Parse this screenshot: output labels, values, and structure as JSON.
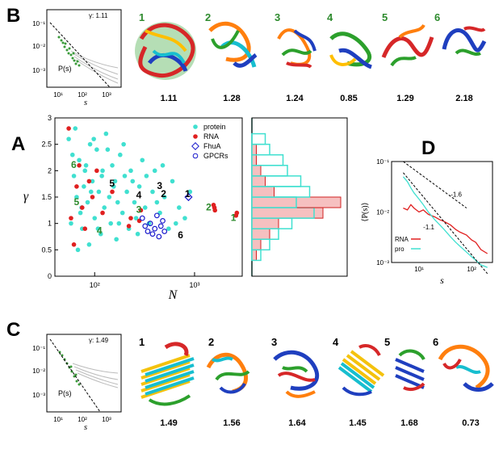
{
  "panels": {
    "A": "A",
    "B": "B",
    "C": "C",
    "D": "D"
  },
  "panel_b": {
    "legend_gamma": "γ: 1.11",
    "legend_ps": "P(s)",
    "xlabel": "s",
    "yticks": [
      "10⁻¹",
      "10⁻²",
      "10⁻³"
    ],
    "xticks": [
      "10¹",
      "10²",
      "10³"
    ],
    "structures": [
      {
        "idx": "1",
        "gamma": "1.11"
      },
      {
        "idx": "2",
        "gamma": "1.28"
      },
      {
        "idx": "3",
        "gamma": "1.24"
      },
      {
        "idx": "4",
        "gamma": "0.85"
      },
      {
        "idx": "5",
        "gamma": "1.29"
      },
      {
        "idx": "6",
        "gamma": "2.18"
      }
    ],
    "idx_color": "#2e8b2e"
  },
  "panel_c": {
    "legend_gamma": "γ: 1.49",
    "legend_ps": "P(s)",
    "xlabel": "s",
    "yticks": [
      "10⁻¹",
      "10⁻²",
      "10⁻³"
    ],
    "xticks": [
      "10¹",
      "10²",
      "10³"
    ],
    "structures": [
      {
        "idx": "1",
        "gamma": "1.49"
      },
      {
        "idx": "2",
        "gamma": "1.56"
      },
      {
        "idx": "3",
        "gamma": "1.64"
      },
      {
        "idx": "4",
        "gamma": "1.45"
      },
      {
        "idx": "5",
        "gamma": "1.68"
      },
      {
        "idx": "6",
        "gamma": "0.73"
      }
    ],
    "idx_color": "#000000"
  },
  "chart_data": [
    {
      "id": "A",
      "type": "scatter",
      "title": "",
      "xlabel": "N",
      "ylabel": "γ",
      "xscale": "log",
      "xlim": [
        40,
        3000
      ],
      "ylim": [
        0,
        3
      ],
      "yticks": [
        "0",
        "0.5",
        "1",
        "1.5",
        "2",
        "2.5",
        "3"
      ],
      "xticks": [
        "10²",
        "10³"
      ],
      "legend": [
        {
          "label": "protein",
          "color": "#40e0d0",
          "marker": "filled-circle"
        },
        {
          "label": "RNA",
          "color": "#e02020",
          "marker": "filled-circle"
        },
        {
          "label": "FhuA",
          "color": "#1a1acc",
          "marker": "open-diamond"
        },
        {
          "label": "GPCRs",
          "color": "#1a1acc",
          "marker": "open-circle"
        }
      ],
      "series": [
        {
          "name": "protein",
          "points": [
            [
              55,
              2.6
            ],
            [
              60,
              2.3
            ],
            [
              62,
              1.9
            ],
            [
              66,
              1.5
            ],
            [
              70,
              2.2
            ],
            [
              72,
              1.2
            ],
            [
              75,
              0.9
            ],
            [
              78,
              1.7
            ],
            [
              80,
              2.0
            ],
            [
              85,
              1.4
            ],
            [
              88,
              0.6
            ],
            [
              90,
              2.5
            ],
            [
              95,
              1.8
            ],
            [
              100,
              1.1
            ],
            [
              105,
              2.4
            ],
            [
              110,
              1.6
            ],
            [
              115,
              0.8
            ],
            [
              120,
              2.0
            ],
            [
              125,
              1.3
            ],
            [
              130,
              2.7
            ],
            [
              140,
              1.5
            ],
            [
              145,
              1.0
            ],
            [
              150,
              2.1
            ],
            [
              160,
              1.8
            ],
            [
              165,
              0.7
            ],
            [
              170,
              1.4
            ],
            [
              180,
              2.3
            ],
            [
              190,
              1.2
            ],
            [
              200,
              1.9
            ],
            [
              210,
              1.6
            ],
            [
              220,
              0.9
            ],
            [
              230,
              2.0
            ],
            [
              250,
              1.4
            ],
            [
              260,
              1.1
            ],
            [
              280,
              1.7
            ],
            [
              300,
              2.2
            ],
            [
              320,
              1.3
            ],
            [
              350,
              1.0
            ],
            [
              380,
              1.6
            ],
            [
              400,
              2.0
            ],
            [
              450,
              1.2
            ],
            [
              500,
              1.5
            ],
            [
              550,
              0.9
            ],
            [
              600,
              1.8
            ],
            [
              700,
              1.3
            ],
            [
              800,
              1.1
            ],
            [
              900,
              1.6
            ],
            [
              58,
              1.0
            ],
            [
              64,
              2.8
            ],
            [
              68,
              0.5
            ],
            [
              74,
              1.3
            ],
            [
              82,
              2.1
            ],
            [
              92,
              1.6
            ],
            [
              98,
              2.6
            ],
            [
              108,
              0.9
            ],
            [
              118,
              1.9
            ],
            [
              135,
              2.4
            ],
            [
              155,
              1.7
            ],
            [
              175,
              1.0
            ],
            [
              195,
              2.5
            ],
            [
              240,
              1.8
            ],
            [
              270,
              0.8
            ],
            [
              330,
              1.9
            ],
            [
              420,
              1.4
            ],
            [
              480,
              2.1
            ],
            [
              650,
              1.0
            ]
          ]
        },
        {
          "name": "RNA",
          "points": [
            [
              55,
              2.8
            ],
            [
              58,
              1.1
            ],
            [
              62,
              0.6
            ],
            [
              66,
              1.7
            ],
            [
              70,
              2.1
            ],
            [
              75,
              1.3
            ],
            [
              80,
              0.9
            ],
            [
              88,
              1.8
            ],
            [
              95,
              1.5
            ],
            [
              105,
              2.0
            ],
            [
              120,
              1.2
            ],
            [
              150,
              1.6
            ],
            [
              220,
              0.95
            ],
            [
              230,
              1.1
            ],
            [
              280,
              1.05
            ],
            [
              290,
              1.25
            ],
            [
              1550,
              1.35
            ],
            [
              1580,
              1.3
            ],
            [
              1600,
              1.25
            ],
            [
              2600,
              1.15
            ],
            [
              2650,
              1.2
            ]
          ]
        },
        {
          "name": "FhuA",
          "points": [
            [
              870,
              1.5
            ]
          ]
        },
        {
          "name": "GPCRs",
          "points": [
            [
              300,
              1.1
            ],
            [
              320,
              0.95
            ],
            [
              340,
              0.85
            ],
            [
              360,
              1.0
            ],
            [
              380,
              0.8
            ],
            [
              400,
              0.9
            ],
            [
              420,
              1.15
            ],
            [
              440,
              0.75
            ],
            [
              460,
              0.95
            ],
            [
              480,
              1.05
            ],
            [
              500,
              0.85
            ]
          ]
        }
      ],
      "annotations": [
        {
          "text": "1",
          "N": 2300,
          "y": 1.05,
          "color": "green"
        },
        {
          "text": "2",
          "N": 1300,
          "y": 1.25,
          "color": "green"
        },
        {
          "text": "3",
          "N": 260,
          "y": 1.2,
          "color": "green"
        },
        {
          "text": "4",
          "N": 105,
          "y": 0.8,
          "color": "green"
        },
        {
          "text": "5",
          "N": 62,
          "y": 1.35,
          "color": "green"
        },
        {
          "text": "6",
          "N": 58,
          "y": 2.05,
          "color": "green"
        },
        {
          "text": "1",
          "N": 800,
          "y": 1.5,
          "color": "black"
        },
        {
          "text": "2",
          "N": 460,
          "y": 1.5,
          "color": "black"
        },
        {
          "text": "3",
          "N": 420,
          "y": 1.65,
          "color": "black"
        },
        {
          "text": "4",
          "N": 260,
          "y": 1.48,
          "color": "black"
        },
        {
          "text": "5",
          "N": 140,
          "y": 1.7,
          "color": "black"
        },
        {
          "text": "6",
          "N": 680,
          "y": 0.72,
          "color": "black"
        }
      ],
      "histogram": {
        "bins": [
          0.3,
          0.5,
          0.7,
          0.9,
          1.1,
          1.3,
          1.5,
          1.7,
          1.9,
          2.1,
          2.3,
          2.5,
          2.7
        ],
        "protein_counts": [
          2,
          4,
          6,
          9,
          14,
          10,
          13,
          11,
          8,
          7,
          4,
          3
        ],
        "rna_counts": [
          1,
          2,
          4,
          6,
          16,
          20,
          5,
          3,
          2,
          1,
          1,
          0
        ]
      }
    },
    {
      "id": "D",
      "type": "line",
      "xlabel": "s",
      "ylabel": "⟨P(s)⟩",
      "xscale": "log",
      "yscale": "log",
      "xlim": [
        3,
        250
      ],
      "ylim": [
        0.001,
        0.1
      ],
      "yticks": [
        "10⁻¹",
        "10⁻²",
        "10⁻³"
      ],
      "xticks": [
        "10¹",
        "10²"
      ],
      "annotations": [
        {
          "text": "-1.6"
        },
        {
          "text": "-1.1"
        }
      ],
      "legend": [
        {
          "label": "RNA",
          "color": "#e02020"
        },
        {
          "label": "pro",
          "color": "#40e0d0"
        }
      ],
      "series": [
        {
          "name": "RNA",
          "x": [
            5,
            6,
            7,
            8,
            10,
            12,
            15,
            20,
            25,
            30,
            40,
            50,
            60,
            80,
            100,
            120,
            150,
            200
          ],
          "y": [
            0.012,
            0.011,
            0.014,
            0.012,
            0.01,
            0.011,
            0.009,
            0.008,
            0.007,
            0.0065,
            0.0055,
            0.0045,
            0.004,
            0.0035,
            0.0028,
            0.0025,
            0.0018,
            0.0015
          ]
        },
        {
          "name": "pro",
          "x": [
            5,
            6,
            7,
            8,
            10,
            12,
            15,
            20,
            25,
            30,
            40,
            50,
            60,
            80,
            100,
            120,
            150,
            200
          ],
          "y": [
            0.05,
            0.04,
            0.03,
            0.024,
            0.018,
            0.014,
            0.01,
            0.007,
            0.0055,
            0.0045,
            0.0032,
            0.0025,
            0.0021,
            0.0016,
            0.0013,
            0.0011,
            0.0009,
            0.0008
          ]
        }
      ]
    }
  ]
}
